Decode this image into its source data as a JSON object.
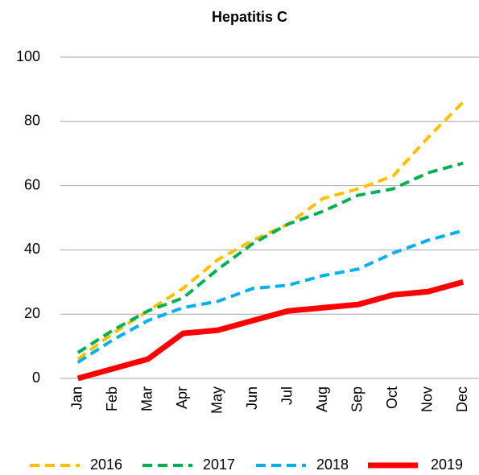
{
  "chart_data": {
    "type": "line",
    "title": "Hepatitis C",
    "categories": [
      "Jan",
      "Feb",
      "Mar",
      "Apr",
      "May",
      "Jun",
      "Jul",
      "Aug",
      "Sep",
      "Oct",
      "Nov",
      "Dec"
    ],
    "series": [
      {
        "name": "2016",
        "color": "#ffc000",
        "line_style": "dashed",
        "values": [
          6,
          14,
          21,
          28,
          37,
          43,
          48,
          56,
          59,
          63,
          75,
          86
        ]
      },
      {
        "name": "2017",
        "color": "#00b050",
        "line_style": "dashed",
        "values": [
          8,
          15,
          21,
          25,
          34,
          42,
          48,
          52,
          57,
          59,
          64,
          67
        ]
      },
      {
        "name": "2018",
        "color": "#00b0f0",
        "line_style": "dashed",
        "values": [
          5,
          12,
          18,
          22,
          24,
          28,
          29,
          32,
          34,
          39,
          43,
          46
        ]
      },
      {
        "name": "2019",
        "color": "#ff0000",
        "line_style": "solid",
        "values": [
          0,
          3,
          6,
          14,
          15,
          18,
          21,
          22,
          23,
          26,
          27,
          30
        ]
      }
    ],
    "ylim": [
      0,
      100
    ],
    "yticks": [
      0,
      20,
      40,
      60,
      80,
      100
    ],
    "grid": true,
    "legend": "bottom"
  }
}
